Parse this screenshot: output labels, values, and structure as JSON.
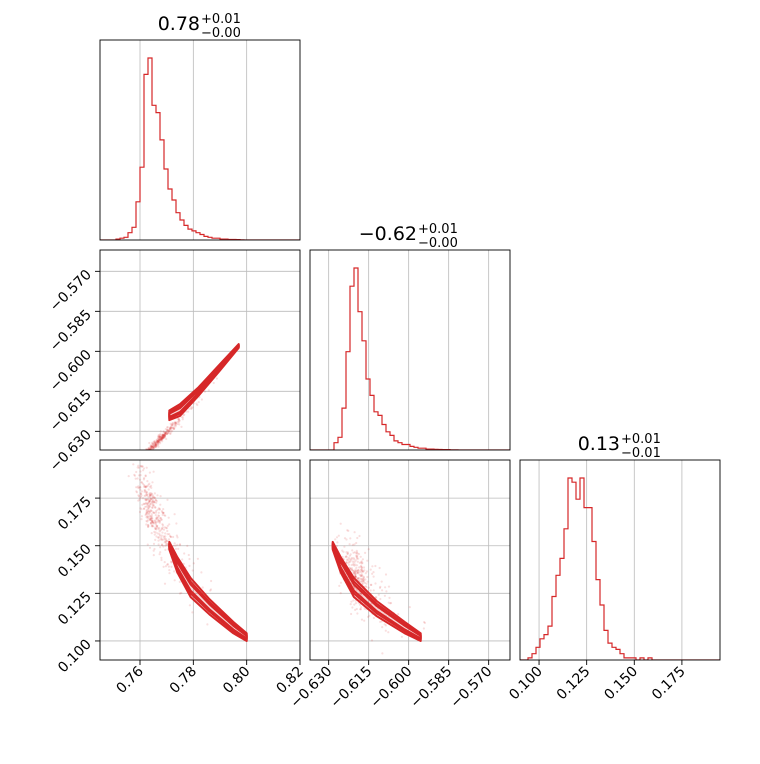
{
  "chart_data": {
    "type": "corner",
    "color": "#d62728",
    "parameters": [
      {
        "id": "p1",
        "range": [
          0.745,
          0.82
        ],
        "ticks": [
          0.76,
          0.78,
          0.8,
          0.82
        ],
        "tick_labels": [
          "0.76",
          "0.78",
          "0.80",
          "0.82"
        ]
      },
      {
        "id": "p2",
        "range": [
          -0.637,
          -0.562
        ],
        "ticks": [
          -0.63,
          -0.615,
          -0.6,
          -0.585,
          -0.57
        ],
        "tick_labels": [
          "−0.630",
          "−0.615",
          "−0.600",
          "−0.585",
          "−0.570"
        ]
      },
      {
        "id": "p3",
        "range": [
          0.09,
          0.195
        ],
        "ticks": [
          0.1,
          0.125,
          0.15,
          0.175
        ],
        "tick_labels": [
          "0.100",
          "0.125",
          "0.150",
          "0.175"
        ]
      }
    ],
    "titles": [
      {
        "value": "0.78",
        "plus": "+0.01",
        "minus": "−0.00"
      },
      {
        "value": "−0.62",
        "plus": "+0.01",
        "minus": "−0.00"
      },
      {
        "value": "0.13",
        "plus": "+0.01",
        "minus": "−0.01"
      }
    ],
    "histograms": [
      {
        "bin_start": 0.745,
        "bin_width": 0.0015,
        "counts": [
          0,
          0,
          0,
          0,
          0.5,
          1,
          1.5,
          4,
          7,
          21,
          40,
          91,
          100,
          74,
          70,
          55,
          39,
          28,
          22,
          15,
          11,
          8,
          6,
          5,
          4,
          3,
          2,
          1.5,
          1,
          1,
          0.5,
          0.5,
          0.3,
          0.3,
          0.2,
          0.1,
          0,
          0,
          0,
          0,
          0,
          0,
          0,
          0,
          0,
          0,
          0,
          0,
          0,
          0
        ]
      },
      {
        "bin_start": -0.637,
        "bin_width": 0.0015,
        "counts": [
          0,
          0,
          0,
          0,
          0,
          0,
          4,
          7,
          23,
          54,
          90,
          100,
          76,
          60,
          39,
          30,
          21,
          19,
          14,
          10,
          8,
          5,
          4,
          3,
          3,
          2,
          1.5,
          1,
          1,
          0.5,
          0.5,
          0.4,
          0.3,
          0.2,
          0.2,
          0.1,
          0.1,
          0,
          0,
          0,
          0,
          0,
          0,
          0,
          0,
          0,
          0,
          0,
          0,
          0
        ]
      },
      {
        "bin_start": 0.09,
        "bin_width": 0.0021,
        "counts": [
          0,
          0,
          1,
          3,
          6,
          10,
          12,
          16,
          30,
          40,
          48,
          62,
          86,
          84,
          76,
          86,
          72,
          72,
          56,
          38,
          26,
          14,
          8,
          6,
          5,
          3,
          1,
          1,
          1,
          0,
          1,
          0,
          1,
          0,
          0,
          0,
          0,
          0,
          0,
          0,
          0,
          0,
          0,
          0,
          0,
          0,
          0,
          0,
          0,
          0
        ]
      }
    ],
    "grid": true,
    "grid_color": "#bbbbbb"
  }
}
